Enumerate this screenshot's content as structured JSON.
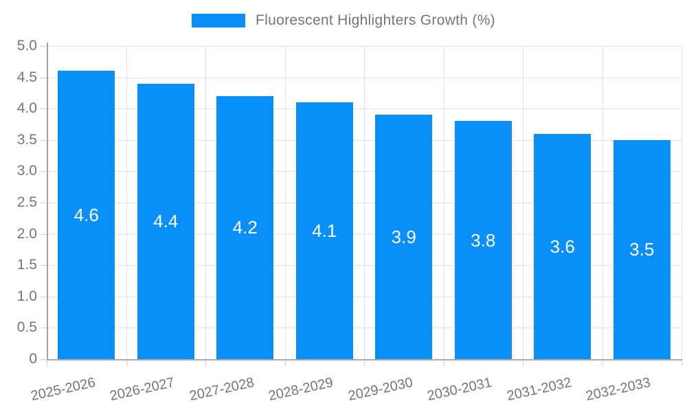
{
  "chart_data": {
    "type": "bar",
    "title": "Fluorescent Highlighters Growth (%)",
    "categories": [
      "2025-2026",
      "2026-2027",
      "2027-2028",
      "2028-2029",
      "2029-2030",
      "2030-2031",
      "2031-2032",
      "2032-2033"
    ],
    "values": [
      4.6,
      4.4,
      4.2,
      4.1,
      3.9,
      3.8,
      3.6,
      3.5
    ],
    "value_labels": [
      "4.6",
      "4.4",
      "4.2",
      "4.1",
      "3.9",
      "3.8",
      "3.6",
      "3.5"
    ],
    "xlabel": "",
    "ylabel": "",
    "ylim": [
      0,
      5
    ],
    "ytick_step": 0.5,
    "ytick_labels": [
      "0",
      "0.5",
      "1.0",
      "1.5",
      "2.0",
      "2.5",
      "3.0",
      "3.5",
      "4.0",
      "4.5",
      "5.0"
    ],
    "grid": true,
    "legend_position": "top-center",
    "bar_color": "#0990f8",
    "value_label_color": "#ffffff",
    "axis_text_color": "#757575",
    "gridline_color": "#e0e0e0"
  },
  "legend": {
    "label": "Fluorescent Highlighters Growth (%)",
    "swatch_color": "#0990f8"
  }
}
